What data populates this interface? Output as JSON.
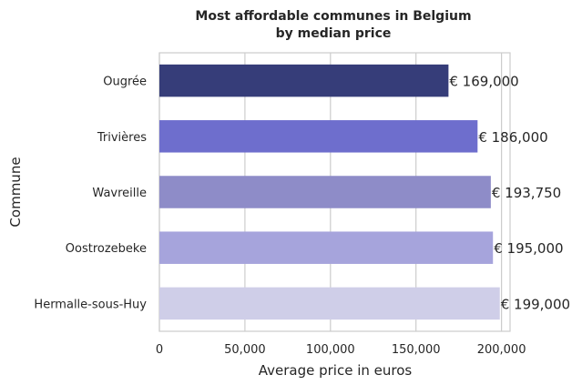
{
  "chart_data": {
    "type": "bar",
    "orientation": "horizontal",
    "title": "Most affordable communes in Belgium",
    "subtitle": "by median price",
    "xlabel": "Average price in euros",
    "ylabel": "Commune",
    "categories": [
      "Ougrée",
      "Trivières",
      "Wavreille",
      "Oostrozebeke",
      "Hermalle-sous-Huy"
    ],
    "values": [
      169000,
      186000,
      193750,
      195000,
      199000
    ],
    "value_labels": [
      "€ 169,000",
      "€ 186,000",
      "€ 193,750",
      "€ 195,000",
      "€ 199,000"
    ],
    "colors": [
      "#363d79",
      "#6e6ecd",
      "#8e8cc8",
      "#a6a4dc",
      "#cfcee8"
    ],
    "xticks": [
      0,
      50000,
      100000,
      150000,
      200000
    ],
    "xtick_labels": [
      "0",
      "50,000",
      "100,000",
      "150,000",
      "200,000"
    ],
    "xlim": [
      0,
      205000
    ],
    "grid": "vertical",
    "legend": "none"
  }
}
